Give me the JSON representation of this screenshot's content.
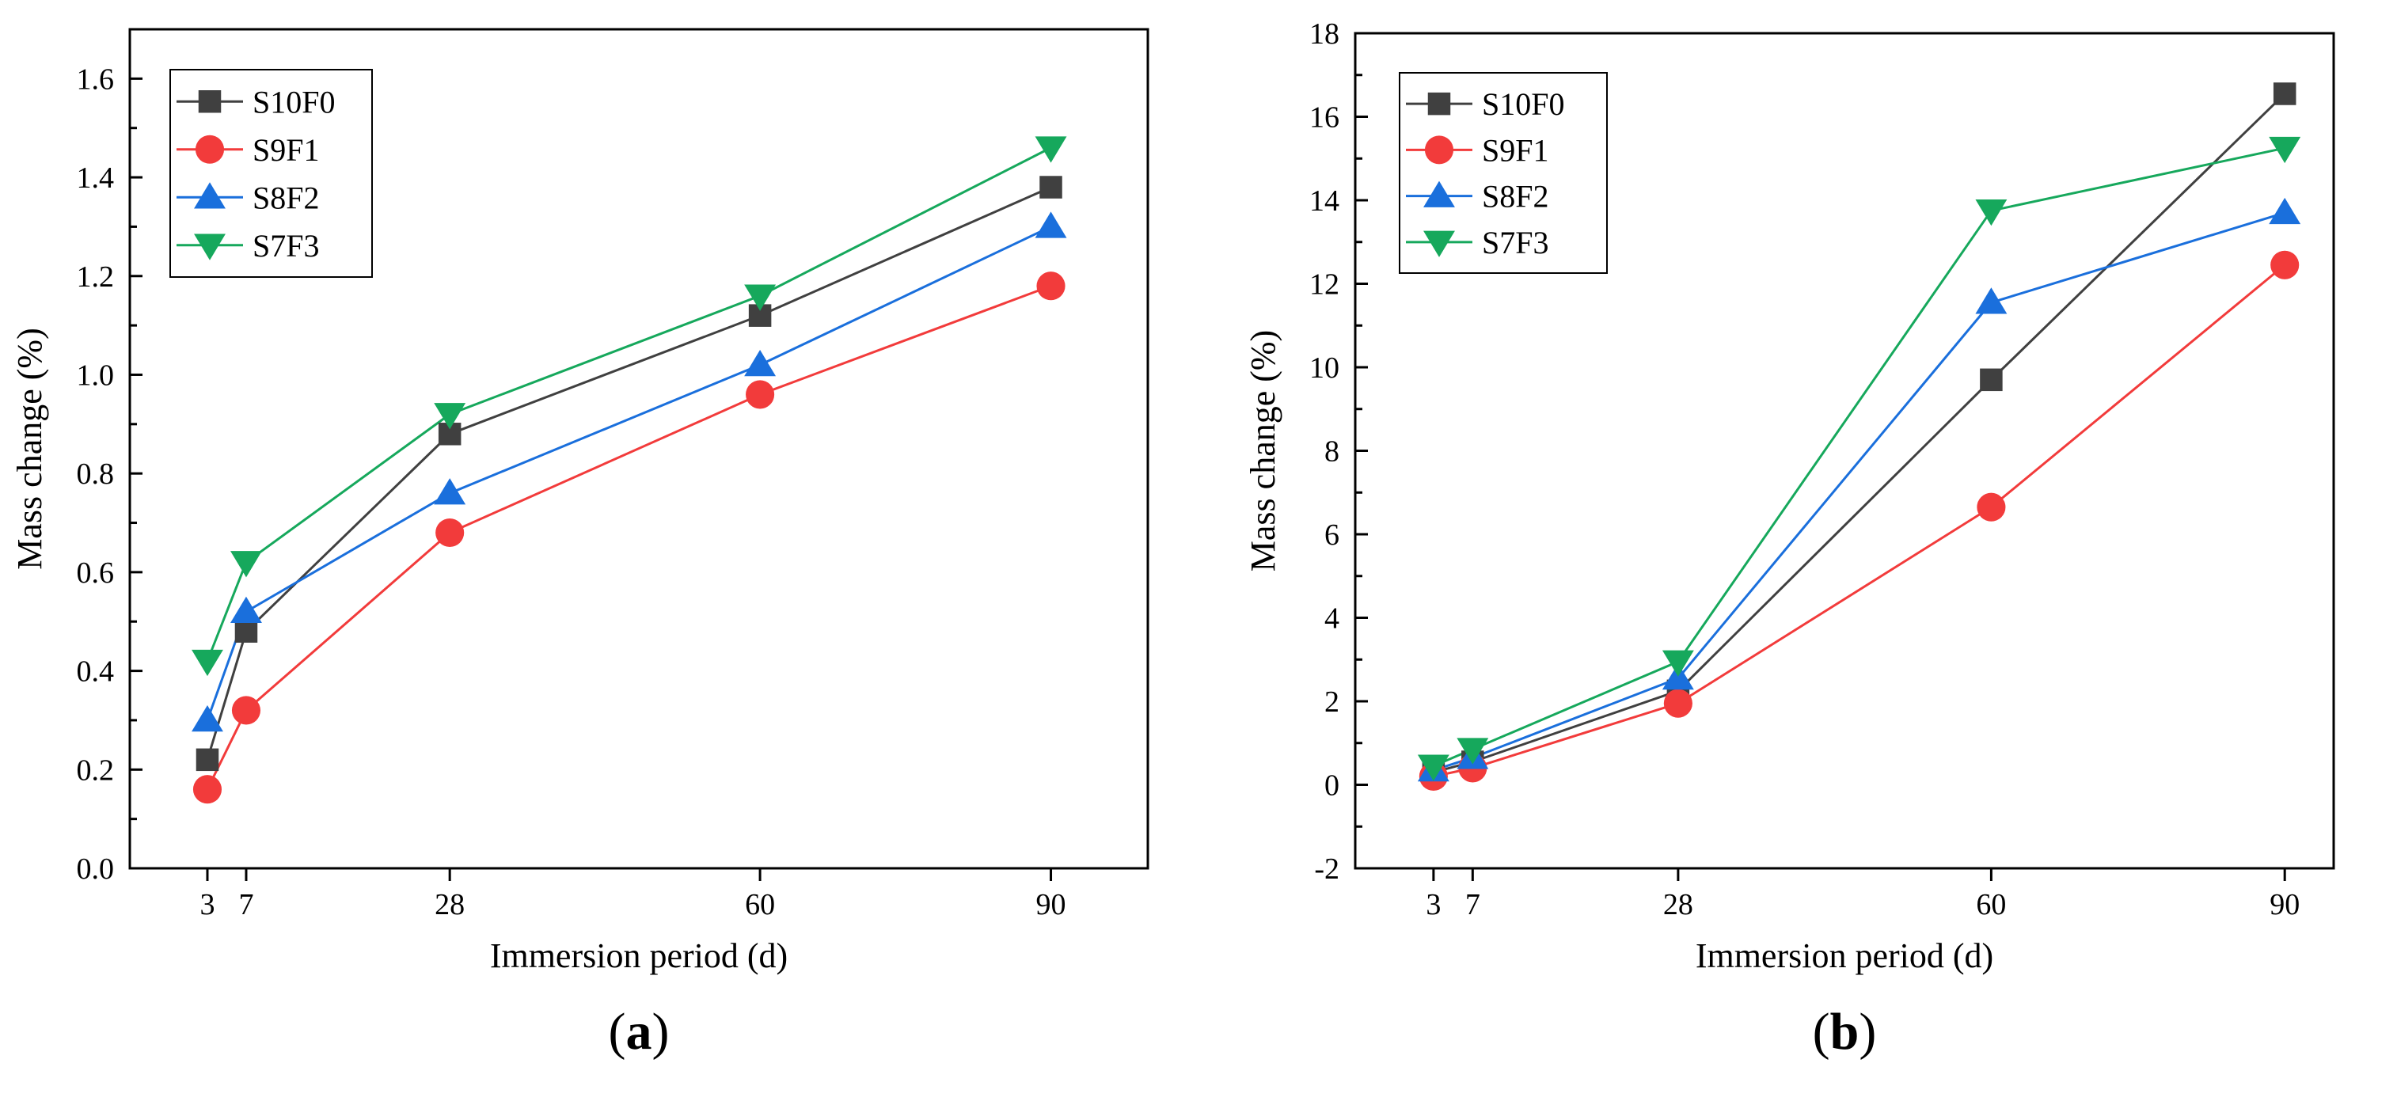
{
  "chart_data": [
    {
      "type": "line",
      "panel_label": "a",
      "xlabel": "Immersion period (d)",
      "ylabel": "Mass change (%)",
      "x": [
        3,
        7,
        28,
        60,
        90
      ],
      "x_ticks": [
        3,
        7,
        28,
        60,
        90
      ],
      "xlim": [
        -5,
        100
      ],
      "ylim": [
        0,
        1.7
      ],
      "y_ticks": [
        "0.0",
        "0.2",
        "0.4",
        "0.6",
        "0.8",
        "1.0",
        "1.2",
        "1.4",
        "1.6"
      ],
      "grid": false,
      "legend_position": "top-left",
      "series": [
        {
          "name": "S10F0",
          "marker": "square",
          "color": "#404040",
          "values": [
            0.22,
            0.48,
            0.88,
            1.12,
            1.38
          ]
        },
        {
          "name": "S9F1",
          "marker": "circle",
          "color": "#f23b3b",
          "values": [
            0.16,
            0.32,
            0.68,
            0.96,
            1.18
          ]
        },
        {
          "name": "S8F2",
          "marker": "triangle-up",
          "color": "#1a6fdc",
          "values": [
            0.3,
            0.52,
            0.76,
            1.02,
            1.3
          ]
        },
        {
          "name": "S7F3",
          "marker": "triangle-down",
          "color": "#16a85c",
          "values": [
            0.42,
            0.62,
            0.92,
            1.16,
            1.46
          ]
        }
      ]
    },
    {
      "type": "line",
      "panel_label": "b",
      "xlabel": "Immersion period (d)",
      "ylabel": "Mass change (%)",
      "x": [
        3,
        7,
        28,
        60,
        90
      ],
      "x_ticks": [
        3,
        7,
        28,
        60,
        90
      ],
      "xlim": [
        -5,
        95
      ],
      "ylim": [
        -2,
        18
      ],
      "y_ticks": [
        "-2",
        "0",
        "2",
        "4",
        "6",
        "8",
        "10",
        "12",
        "14",
        "16",
        "18"
      ],
      "grid": false,
      "legend_position": "top-left",
      "series": [
        {
          "name": "S10F0",
          "marker": "square",
          "color": "#404040",
          "values": [
            0.3,
            0.55,
            2.25,
            9.7,
            16.55
          ]
        },
        {
          "name": "S9F1",
          "marker": "circle",
          "color": "#f23b3b",
          "values": [
            0.2,
            0.4,
            1.95,
            6.65,
            12.45
          ]
        },
        {
          "name": "S8F2",
          "marker": "triangle-up",
          "color": "#1a6fdc",
          "values": [
            0.35,
            0.65,
            2.55,
            11.55,
            13.7
          ]
        },
        {
          "name": "S7F3",
          "marker": "triangle-down",
          "color": "#16a85c",
          "values": [
            0.45,
            0.85,
            2.95,
            13.75,
            15.25
          ]
        }
      ]
    }
  ]
}
